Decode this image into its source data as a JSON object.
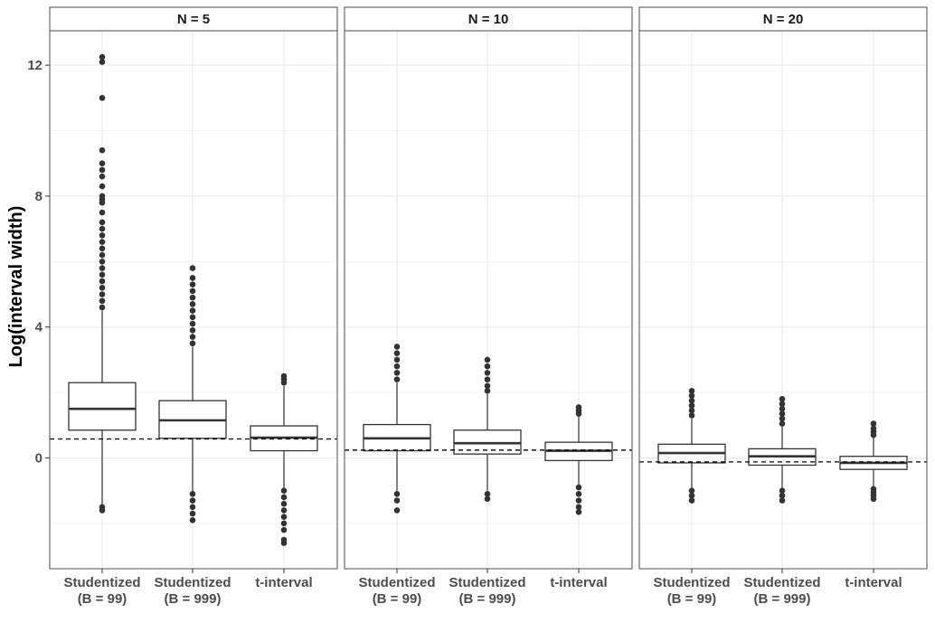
{
  "chart_data": {
    "type": "boxplot",
    "ylabel": "Log(interval width)",
    "xlabel": "",
    "ylim": [
      -3.3,
      13.0
    ],
    "y_ticks": [
      "0",
      "4",
      "8",
      "12"
    ],
    "categories": [
      {
        "line1": "Studentized",
        "line2": "(B = 99)"
      },
      {
        "line1": "Studentized",
        "line2": "(B = 999)"
      },
      {
        "line1": "t-interval",
        "line2": ""
      }
    ],
    "grid": true,
    "reference_line_style": "dashed",
    "colors": {
      "panel_border": "#4d4d4d",
      "strip_fill": "#ffffff",
      "grid": "#ebebeb",
      "box": "#333333",
      "points": "#333333"
    },
    "panels": [
      {
        "title": "N = 5",
        "reference_line": 0.58,
        "boxes": [
          {
            "q1": 0.85,
            "median": 1.5,
            "q3": 2.3,
            "whisker_low": -1.45,
            "whisker_high": 4.5,
            "outliers_high": [
              4.6,
              4.8,
              5.0,
              5.2,
              5.4,
              5.6,
              5.8,
              6.0,
              6.2,
              6.4,
              6.6,
              6.8,
              7.0,
              7.2,
              7.5,
              7.8,
              7.9,
              8.0,
              8.3,
              8.6,
              8.8,
              9.0,
              9.4,
              11.0,
              12.1,
              12.25
            ],
            "outliers_low": [
              -1.5,
              -1.6
            ]
          },
          {
            "q1": 0.6,
            "median": 1.15,
            "q3": 1.75,
            "whisker_low": -1.05,
            "whisker_high": 3.4,
            "outliers_high": [
              3.5,
              3.7,
              3.9,
              4.1,
              4.3,
              4.5,
              4.7,
              4.9,
              5.1,
              5.3,
              5.5,
              5.8
            ],
            "outliers_low": [
              -1.1,
              -1.3,
              -1.5,
              -1.7,
              -1.9
            ]
          },
          {
            "q1": 0.22,
            "median": 0.62,
            "q3": 0.98,
            "whisker_low": -0.95,
            "whisker_high": 2.2,
            "outliers_high": [
              2.3,
              2.4,
              2.5
            ],
            "outliers_low": [
              -1.0,
              -1.2,
              -1.4,
              -1.6,
              -1.8,
              -2.0,
              -2.2,
              -2.5,
              -2.6
            ]
          }
        ]
      },
      {
        "title": "N = 10",
        "reference_line": 0.24,
        "boxes": [
          {
            "q1": 0.22,
            "median": 0.6,
            "q3": 1.02,
            "whisker_low": -1.0,
            "whisker_high": 2.3,
            "outliers_high": [
              2.4,
              2.6,
              2.8,
              3.0,
              3.2,
              3.4
            ],
            "outliers_low": [
              -1.1,
              -1.3,
              -1.6
            ]
          },
          {
            "q1": 0.12,
            "median": 0.45,
            "q3": 0.85,
            "whisker_low": -1.0,
            "whisker_high": 1.95,
            "outliers_high": [
              2.05,
              2.2,
              2.4,
              2.6,
              2.8,
              3.0
            ],
            "outliers_low": [
              -1.1,
              -1.25
            ]
          },
          {
            "q1": -0.08,
            "median": 0.22,
            "q3": 0.48,
            "whisker_low": -0.85,
            "whisker_high": 1.3,
            "outliers_high": [
              1.35,
              1.45,
              1.55
            ],
            "outliers_low": [
              -0.9,
              -1.1,
              -1.3,
              -1.5,
              -1.65
            ]
          }
        ]
      },
      {
        "title": "N = 20",
        "reference_line": -0.12,
        "boxes": [
          {
            "q1": -0.15,
            "median": 0.15,
            "q3": 0.42,
            "whisker_low": -0.95,
            "whisker_high": 1.2,
            "outliers_high": [
              1.3,
              1.45,
              1.6,
              1.75,
              1.9,
              2.05
            ],
            "outliers_low": [
              -1.0,
              -1.15,
              -1.3
            ]
          },
          {
            "q1": -0.22,
            "median": 0.05,
            "q3": 0.28,
            "whisker_low": -0.92,
            "whisker_high": 0.98,
            "outliers_high": [
              1.05,
              1.2,
              1.35,
              1.5,
              1.65,
              1.8
            ],
            "outliers_low": [
              -1.0,
              -1.15,
              -1.3
            ]
          },
          {
            "q1": -0.35,
            "median": -0.15,
            "q3": 0.05,
            "whisker_low": -0.9,
            "whisker_high": 0.62,
            "outliers_high": [
              0.7,
              0.8,
              0.9,
              1.05
            ],
            "outliers_low": [
              -0.95,
              -1.05,
              -1.15,
              -1.25
            ]
          }
        ]
      }
    ]
  }
}
